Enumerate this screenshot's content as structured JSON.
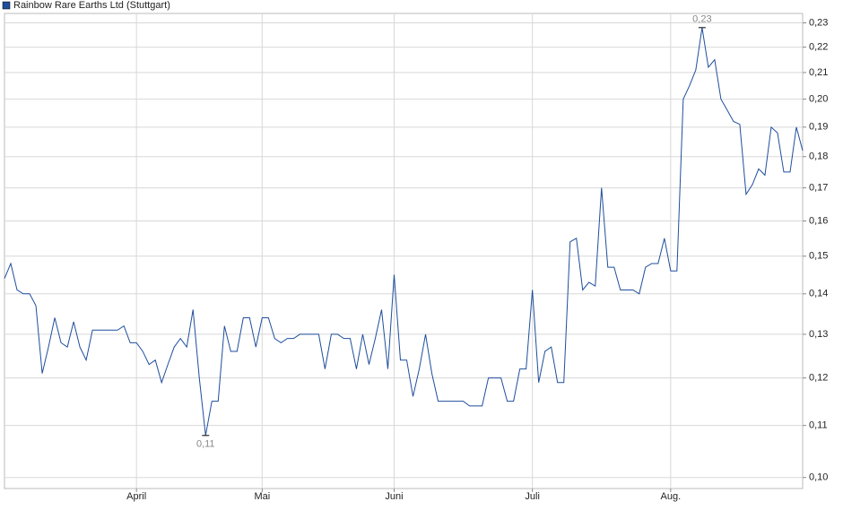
{
  "chart_data": {
    "type": "line",
    "categories": [
      null,
      null,
      null,
      null,
      null,
      null,
      null,
      null,
      null,
      null,
      null,
      null,
      null,
      null,
      null,
      null,
      null,
      null,
      null,
      null,
      null,
      "April",
      null,
      null,
      null,
      null,
      null,
      null,
      null,
      null,
      null,
      null,
      null,
      null,
      null,
      null,
      null,
      null,
      null,
      null,
      null,
      "Mai",
      null,
      null,
      null,
      null,
      null,
      null,
      null,
      null,
      null,
      null,
      null,
      null,
      null,
      null,
      null,
      null,
      null,
      null,
      null,
      null,
      "Juni",
      null,
      null,
      null,
      null,
      null,
      null,
      null,
      null,
      null,
      null,
      null,
      null,
      null,
      null,
      null,
      null,
      null,
      null,
      null,
      null,
      null,
      "Juli",
      null,
      null,
      null,
      null,
      null,
      null,
      null,
      null,
      null,
      null,
      null,
      null,
      null,
      null,
      null,
      null,
      null,
      null,
      null,
      null,
      null,
      "Aug.",
      null,
      null,
      null,
      null,
      null,
      null,
      null,
      null,
      null,
      null,
      null,
      null,
      null,
      null,
      null,
      null,
      null,
      null,
      null,
      null,
      null
    ],
    "series": [
      {
        "name": "Rainbow Rare Earths Ltd (Stuttgart)",
        "color": "#1f4e9c",
        "values": [
          0.144,
          0.148,
          0.141,
          0.14,
          0.14,
          0.137,
          0.121,
          0.127,
          0.134,
          0.128,
          0.127,
          0.133,
          0.127,
          0.124,
          0.131,
          0.131,
          0.131,
          0.131,
          0.131,
          0.132,
          0.128,
          0.128,
          0.126,
          0.123,
          0.124,
          0.119,
          0.123,
          0.127,
          0.129,
          0.127,
          0.136,
          0.12,
          0.108,
          0.115,
          0.115,
          0.132,
          0.126,
          0.126,
          0.134,
          0.134,
          0.127,
          0.134,
          0.134,
          0.129,
          0.128,
          0.129,
          0.129,
          0.13,
          0.13,
          0.13,
          0.13,
          0.122,
          0.13,
          0.13,
          0.129,
          0.129,
          0.122,
          0.13,
          0.123,
          0.129,
          0.136,
          0.122,
          0.145,
          0.124,
          0.124,
          0.116,
          0.122,
          0.13,
          0.121,
          0.115,
          0.115,
          0.115,
          0.115,
          0.115,
          0.114,
          0.114,
          0.114,
          0.12,
          0.12,
          0.12,
          0.115,
          0.115,
          0.122,
          0.122,
          0.141,
          0.119,
          0.126,
          0.127,
          0.119,
          0.119,
          0.154,
          0.155,
          0.141,
          0.143,
          0.142,
          0.17,
          0.147,
          0.147,
          0.141,
          0.141,
          0.141,
          0.14,
          0.147,
          0.148,
          0.148,
          0.155,
          0.146,
          0.146,
          0.2,
          0.205,
          0.211,
          0.228,
          0.212,
          0.215,
          0.2,
          0.196,
          0.192,
          0.191,
          0.168,
          0.171,
          0.176,
          0.174,
          0.19,
          0.188,
          0.175,
          0.175,
          0.19,
          0.182
        ],
        "value_labels": [
          null,
          null,
          null,
          null,
          null,
          null,
          null,
          null,
          null,
          null,
          null,
          null,
          null,
          null,
          null,
          null,
          null,
          null,
          null,
          null,
          null,
          null,
          null,
          null,
          null,
          null,
          null,
          null,
          null,
          null,
          null,
          null,
          "0,11",
          null,
          null,
          null,
          null,
          null,
          null,
          null,
          null,
          null,
          null,
          null,
          null,
          null,
          null,
          null,
          null,
          null,
          null,
          null,
          null,
          null,
          null,
          null,
          null,
          null,
          null,
          null,
          null,
          null,
          null,
          null,
          null,
          null,
          null,
          null,
          null,
          null,
          null,
          null,
          null,
          null,
          null,
          null,
          null,
          null,
          null,
          null,
          null,
          null,
          null,
          null,
          null,
          null,
          null,
          null,
          null,
          null,
          null,
          null,
          null,
          null,
          null,
          null,
          null,
          null,
          null,
          null,
          null,
          null,
          null,
          null,
          null,
          null,
          null,
          null,
          null,
          null,
          null,
          "0,23",
          null,
          null,
          null,
          null,
          null,
          null,
          null,
          null,
          null,
          null,
          null,
          null,
          null,
          null,
          null,
          null
        ]
      }
    ],
    "log_scale": true,
    "ylim": [
      0.098,
      0.234
    ],
    "yticks": [
      {
        "value": 0.1,
        "label": "0,10"
      },
      {
        "value": 0.11,
        "label": "0,11"
      },
      {
        "value": 0.12,
        "label": "0,12"
      },
      {
        "value": 0.13,
        "label": "0,13"
      },
      {
        "value": 0.14,
        "label": "0,14"
      },
      {
        "value": 0.15,
        "label": "0,15"
      },
      {
        "value": 0.16,
        "label": "0,16"
      },
      {
        "value": 0.17,
        "label": "0,17"
      },
      {
        "value": 0.18,
        "label": "0,18"
      },
      {
        "value": 0.19,
        "label": "0,19"
      },
      {
        "value": 0.2,
        "label": "0,20"
      },
      {
        "value": 0.21,
        "label": "0,21"
      },
      {
        "value": 0.22,
        "label": "0,22"
      },
      {
        "value": 0.23,
        "label": "0,23"
      }
    ],
    "grid": true,
    "legend": "top-left"
  }
}
